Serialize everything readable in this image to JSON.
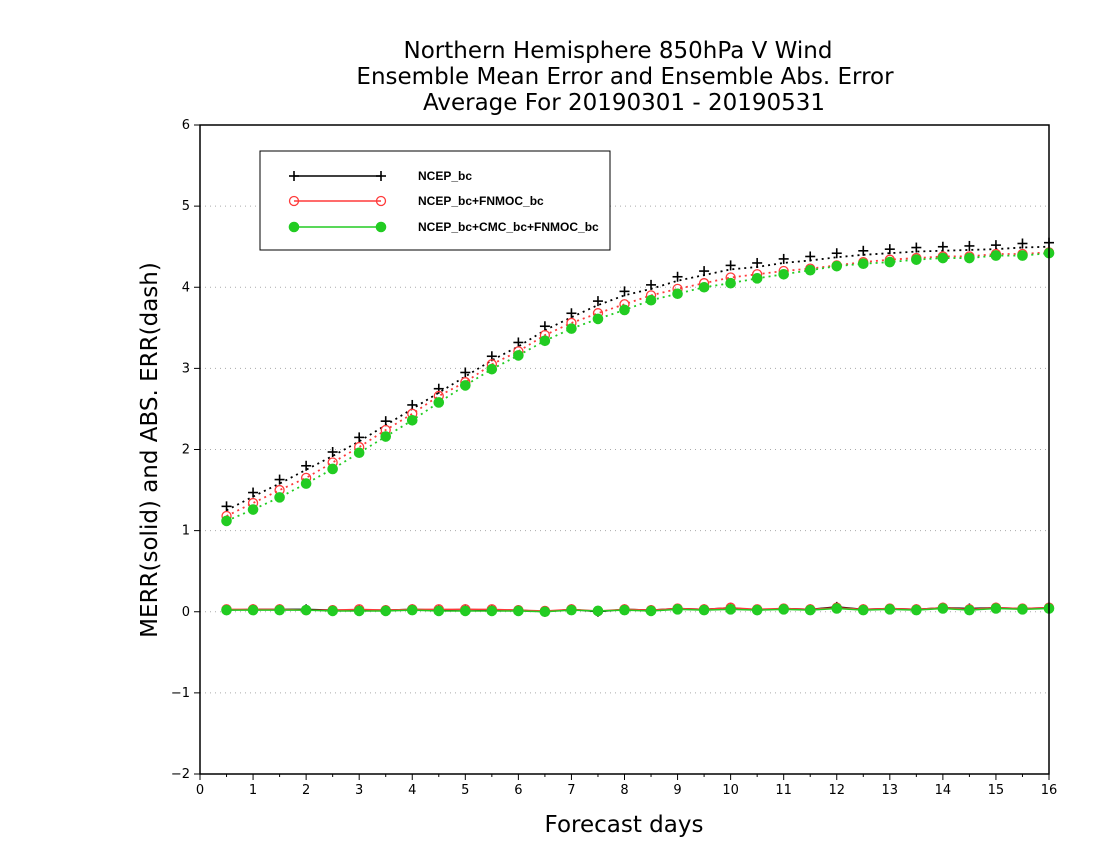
{
  "chart_data": {
    "type": "line",
    "title": [
      "Northern Hemisphere 850hPa V Wind",
      "Ensemble Mean Error and Ensemble Abs. Error",
      "Average For 20190301 - 20190531"
    ],
    "xlabel": "Forecast days",
    "ylabel": "MERR(solid) and ABS. ERR(dash)",
    "xlim": [
      0,
      16
    ],
    "ylim": [
      -2,
      6
    ],
    "xticks": [
      "0",
      "1",
      "2",
      "3",
      "4",
      "5",
      "6",
      "7",
      "8",
      "9",
      "10",
      "11",
      "12",
      "13",
      "14",
      "15",
      "16"
    ],
    "yticks": [
      "−2",
      "−1",
      "0",
      "1",
      "2",
      "3",
      "4",
      "5",
      "6"
    ],
    "grid": "horizontal dotted",
    "legend_position": "top-left",
    "x": [
      0.5,
      1,
      1.5,
      2,
      2.5,
      3,
      3.5,
      4,
      4.5,
      5,
      5.5,
      6,
      6.5,
      7,
      7.5,
      8,
      8.5,
      9,
      9.5,
      10,
      10.5,
      11,
      11.5,
      12,
      12.5,
      13,
      13.5,
      14,
      14.5,
      15,
      15.5,
      16
    ],
    "series": [
      {
        "name": "NCEP_bc",
        "color": "#000000",
        "marker": "plus",
        "abs_err": [
          1.25,
          1.42,
          1.58,
          1.75,
          1.92,
          2.1,
          2.3,
          2.5,
          2.7,
          2.9,
          3.1,
          3.27,
          3.47,
          3.63,
          3.78,
          3.9,
          3.98,
          4.08,
          4.15,
          4.22,
          4.25,
          4.3,
          4.33,
          4.37,
          4.4,
          4.42,
          4.44,
          4.45,
          4.46,
          4.47,
          4.49,
          4.5
        ],
        "mean_err": [
          0.02,
          0.03,
          0.03,
          0.03,
          0.02,
          0.02,
          0.02,
          0.03,
          0.02,
          0.03,
          0.02,
          0.02,
          0.0,
          0.03,
          0.0,
          0.03,
          0.02,
          0.04,
          0.03,
          0.05,
          0.02,
          0.04,
          0.03,
          0.06,
          0.03,
          0.04,
          0.03,
          0.05,
          0.04,
          0.05,
          0.04,
          0.05
        ]
      },
      {
        "name": "NCEP_bc+FNMOC_bc",
        "color": "#ff3a3a",
        "marker": "open-circle",
        "abs_err": [
          1.18,
          1.34,
          1.5,
          1.65,
          1.84,
          2.03,
          2.24,
          2.44,
          2.66,
          2.83,
          3.05,
          3.21,
          3.41,
          3.56,
          3.68,
          3.79,
          3.9,
          3.98,
          4.05,
          4.12,
          4.16,
          4.2,
          4.23,
          4.27,
          4.31,
          4.34,
          4.36,
          4.38,
          4.38,
          4.41,
          4.41,
          4.43
        ],
        "mean_err": [
          0.03,
          0.03,
          0.03,
          0.02,
          0.02,
          0.03,
          0.02,
          0.03,
          0.03,
          0.03,
          0.03,
          0.02,
          0.01,
          0.03,
          0.01,
          0.03,
          0.02,
          0.04,
          0.03,
          0.05,
          0.03,
          0.04,
          0.03,
          0.05,
          0.03,
          0.04,
          0.03,
          0.05,
          0.03,
          0.05,
          0.04,
          0.05
        ]
      },
      {
        "name": "NCEP_bc+CMC_bc+FNMOC_bc",
        "color": "#22cc22",
        "marker": "filled-circle",
        "abs_err": [
          1.12,
          1.26,
          1.41,
          1.58,
          1.76,
          1.96,
          2.16,
          2.36,
          2.58,
          2.79,
          2.99,
          3.16,
          3.34,
          3.49,
          3.61,
          3.72,
          3.84,
          3.92,
          4.0,
          4.05,
          4.11,
          4.16,
          4.21,
          4.26,
          4.29,
          4.31,
          4.34,
          4.36,
          4.36,
          4.39,
          4.39,
          4.42
        ],
        "mean_err": [
          0.02,
          0.02,
          0.02,
          0.02,
          0.01,
          0.01,
          0.01,
          0.02,
          0.01,
          0.01,
          0.01,
          0.01,
          0.0,
          0.02,
          0.01,
          0.02,
          0.01,
          0.03,
          0.02,
          0.03,
          0.02,
          0.03,
          0.02,
          0.04,
          0.02,
          0.03,
          0.02,
          0.04,
          0.02,
          0.04,
          0.03,
          0.04
        ]
      }
    ]
  }
}
